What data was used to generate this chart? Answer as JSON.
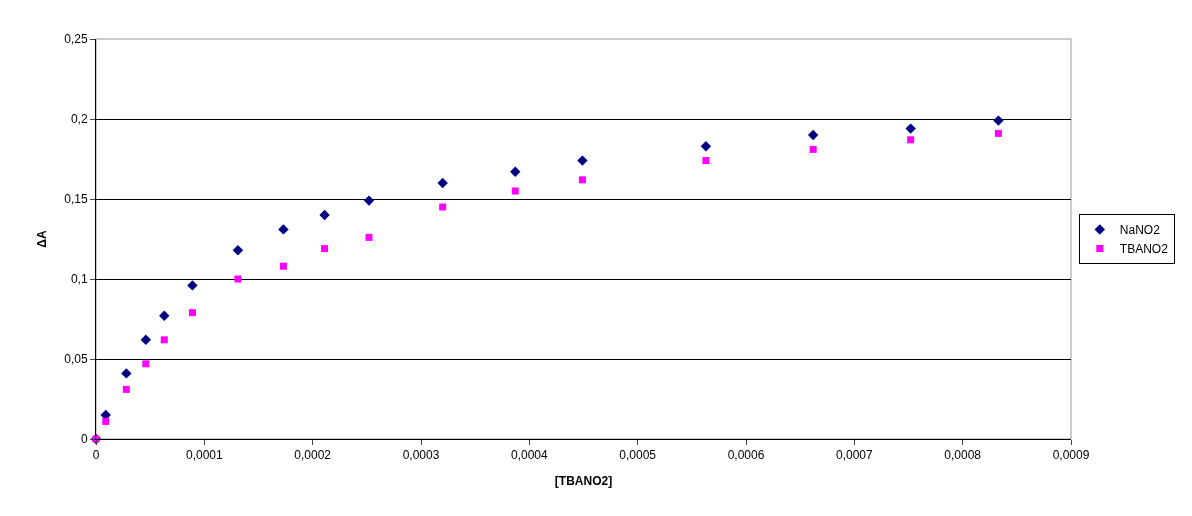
{
  "chart_data": {
    "type": "scatter",
    "xlabel": "[TBANO2]",
    "ylabel": "ΔA",
    "x": [
      0,
      9e-06,
      2.8e-05,
      4.6e-05,
      6.3e-05,
      8.9e-05,
      0.000131,
      0.000173,
      0.000211,
      0.000252,
      0.00032,
      0.000387,
      0.000449,
      0.000563,
      0.000662,
      0.000752,
      0.000833
    ],
    "series": [
      {
        "name": "NaNO2",
        "color": "#000080",
        "marker": "diamond",
        "values": [
          0,
          0.015,
          0.041,
          0.062,
          0.077,
          0.096,
          0.118,
          0.131,
          0.14,
          0.149,
          0.16,
          0.167,
          0.174,
          0.183,
          0.19,
          0.194,
          0.199
        ]
      },
      {
        "name": "TBANO2",
        "color": "#ff00ff",
        "marker": "square",
        "values": [
          0,
          0.011,
          0.031,
          0.047,
          0.062,
          0.079,
          0.1,
          0.108,
          0.119,
          0.126,
          0.145,
          0.155,
          0.162,
          0.174,
          0.181,
          0.187,
          0.191
        ]
      }
    ],
    "xlim": [
      0,
      0.0009
    ],
    "xticks": [
      {
        "value": 0,
        "label": "0"
      },
      {
        "value": 0.0001,
        "label": "0,0001"
      },
      {
        "value": 0.0002,
        "label": "0,0002"
      },
      {
        "value": 0.0003,
        "label": "0,0003"
      },
      {
        "value": 0.0004,
        "label": "0,0004"
      },
      {
        "value": 0.0005,
        "label": "0,0005"
      },
      {
        "value": 0.0006,
        "label": "0,0006"
      },
      {
        "value": 0.0007,
        "label": "0,0007"
      },
      {
        "value": 0.0008,
        "label": "0,0008"
      },
      {
        "value": 0.0009,
        "label": "0,0009"
      }
    ],
    "ylim": [
      0,
      0.25
    ],
    "yticks": [
      {
        "value": 0,
        "label": "0"
      },
      {
        "value": 0.05,
        "label": "0,05"
      },
      {
        "value": 0.1,
        "label": "0,1"
      },
      {
        "value": 0.15,
        "label": "0,15"
      },
      {
        "value": 0.2,
        "label": "0,2"
      },
      {
        "value": 0.25,
        "label": "0,25"
      }
    ],
    "grid": "y",
    "legend": "right"
  }
}
